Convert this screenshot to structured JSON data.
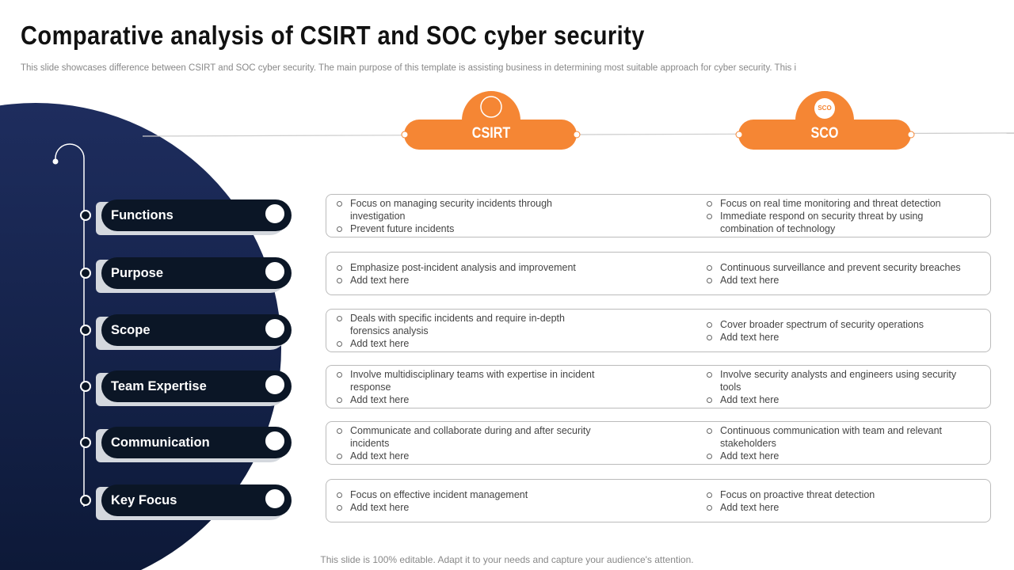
{
  "title": "Comparative analysis of CSIRT and SOC cyber security",
  "subtitle": "This slide showcases difference between CSIRT and SOC cyber security. The main purpose of this template is assisting business in determining most suitable approach for cyber security. This i",
  "columns": [
    {
      "label": "CSIRT"
    },
    {
      "label": "SCO",
      "icon_label": "SCO"
    }
  ],
  "rows": [
    {
      "label": "Functions",
      "csirt": [
        "Focus on managing security incidents  through investigation",
        "Prevent  future incidents"
      ],
      "soc": [
        "Focus on real time monitoring and threat detection",
        "Immediate respond on security threat by using combination of technology"
      ]
    },
    {
      "label": "Purpose",
      "csirt": [
        "Emphasize post-incident analysis and improvement",
        "Add text here"
      ],
      "soc": [
        "Continuous surveillance and prevent  security breaches",
        "Add text here"
      ]
    },
    {
      "label": "Scope",
      "csirt": [
        "Deals with specific incidents and require in-depth forensics analysis",
        "Add text here"
      ],
      "soc": [
        "Cover  broader spectrum of security operations",
        "Add text here"
      ]
    },
    {
      "label": "Team Expertise",
      "csirt": [
        "Involve  multidisciplinary teams with expertise in incident response",
        "Add text here"
      ],
      "soc": [
        "Involve  security analysts and engineers using security tools",
        "Add text here"
      ]
    },
    {
      "label": "Communication",
      "csirt": [
        "Communicate and collaborate during and after security incidents",
        "Add text here"
      ],
      "soc": [
        "Continuous communication with team and relevant  stakeholders",
        "Add text here"
      ]
    },
    {
      "label": "Key Focus",
      "csirt": [
        "Focus on effective  incident management",
        "Add text here"
      ],
      "soc": [
        "Focus on proactive  threat detection",
        "Add text here"
      ]
    }
  ],
  "footer": "This slide is 100% editable. Adapt it to your needs and capture your audience's attention."
}
